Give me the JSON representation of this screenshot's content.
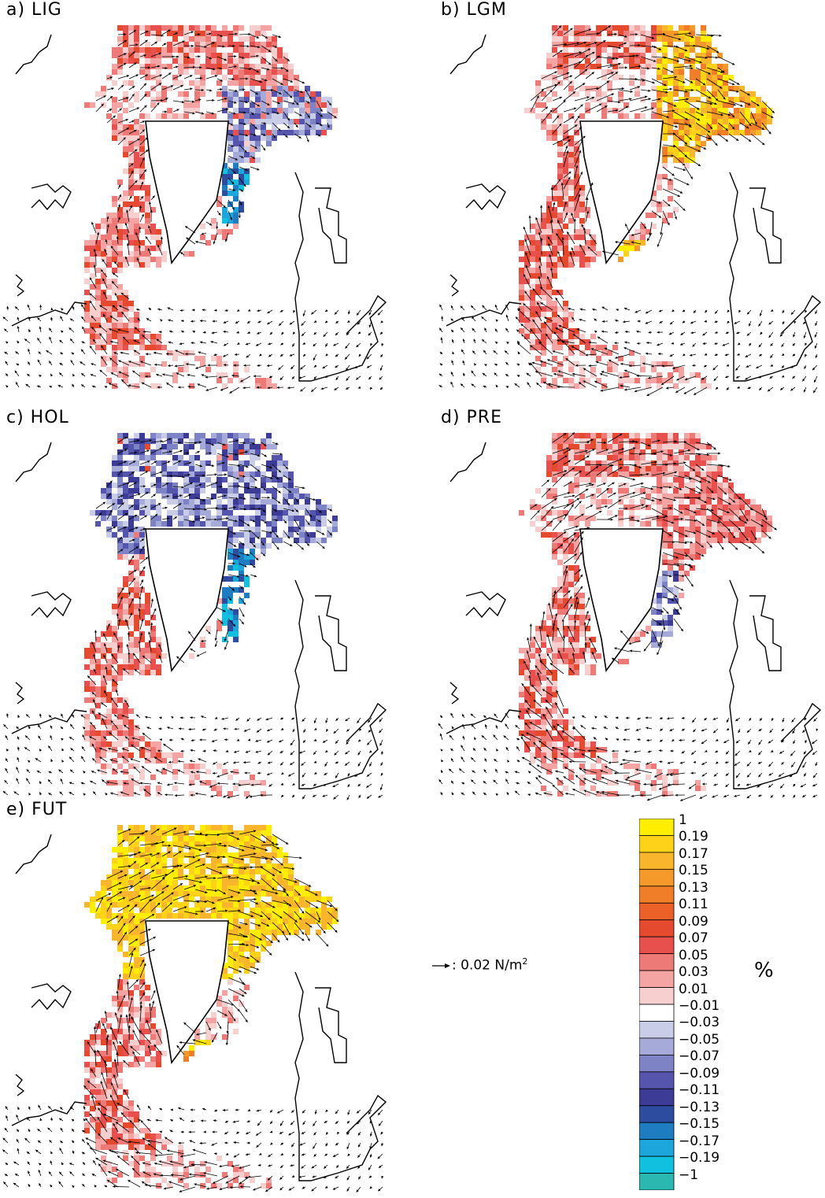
{
  "chart_data": [
    {
      "type": "heatmap",
      "panel": "a",
      "title": "a) LIG",
      "field": "change (%)",
      "arrows": "wind stress",
      "anomaly_pattern": {
        "dominant": "positive",
        "pos_max": 0.15,
        "neg_min": -0.15
      }
    },
    {
      "type": "heatmap",
      "panel": "b",
      "title": "b) LGM",
      "field": "change (%)",
      "arrows": "wind stress",
      "anomaly_pattern": {
        "dominant": "positive",
        "pos_max": 1,
        "neg_min": -0.01
      }
    },
    {
      "type": "heatmap",
      "panel": "c",
      "title": "c) HOL",
      "field": "change (%)",
      "arrows": "wind stress",
      "anomaly_pattern": {
        "dominant": "mixed",
        "pos_max": 0.13,
        "neg_min": -0.15
      }
    },
    {
      "type": "heatmap",
      "panel": "d",
      "title": "d) PRE",
      "field": "change (%)",
      "arrows": "wind stress",
      "anomaly_pattern": {
        "dominant": "positive",
        "pos_max": 0.15,
        "neg_min": -0.15
      }
    },
    {
      "type": "heatmap",
      "panel": "e",
      "title": "e) FUT",
      "field": "change (%)",
      "arrows": "wind stress",
      "anomaly_pattern": {
        "dominant": "positive",
        "pos_max": 1,
        "neg_min": -0.09
      }
    }
  ],
  "reference_arrow": {
    "label": ": 0.02 N/m",
    "superscript": "2"
  },
  "colorbar": {
    "unit": "%",
    "labels": [
      "1",
      "0.19",
      "0.17",
      "0.15",
      "0.13",
      "0.11",
      "0.09",
      "0.07",
      "0.05",
      "0.03",
      "0.01",
      "−0.01",
      "−0.03",
      "−0.05",
      "−0.07",
      "−0.09",
      "−0.11",
      "−0.13",
      "−0.15",
      "−0.17",
      "−0.19",
      "−1"
    ],
    "colors": [
      "#ffee00",
      "#ffd21a",
      "#f9b52b",
      "#f59a2a",
      "#f07e28",
      "#ec6128",
      "#e64a2e",
      "#e8504d",
      "#ee7a77",
      "#f4a4a2",
      "#f8cfcf",
      "#ffffff",
      "#c9cde8",
      "#a5aad8",
      "#7d83c4",
      "#5555ad",
      "#3c3c96",
      "#2d4ca0",
      "#1e7cc0",
      "#1ca6dc",
      "#11c0de",
      "#2ab8b0"
    ]
  },
  "labels": {
    "a": "a) LIG",
    "b": "b) LGM",
    "c": "c) HOL",
    "d": "d) PRE",
    "e": "e) FUT"
  }
}
